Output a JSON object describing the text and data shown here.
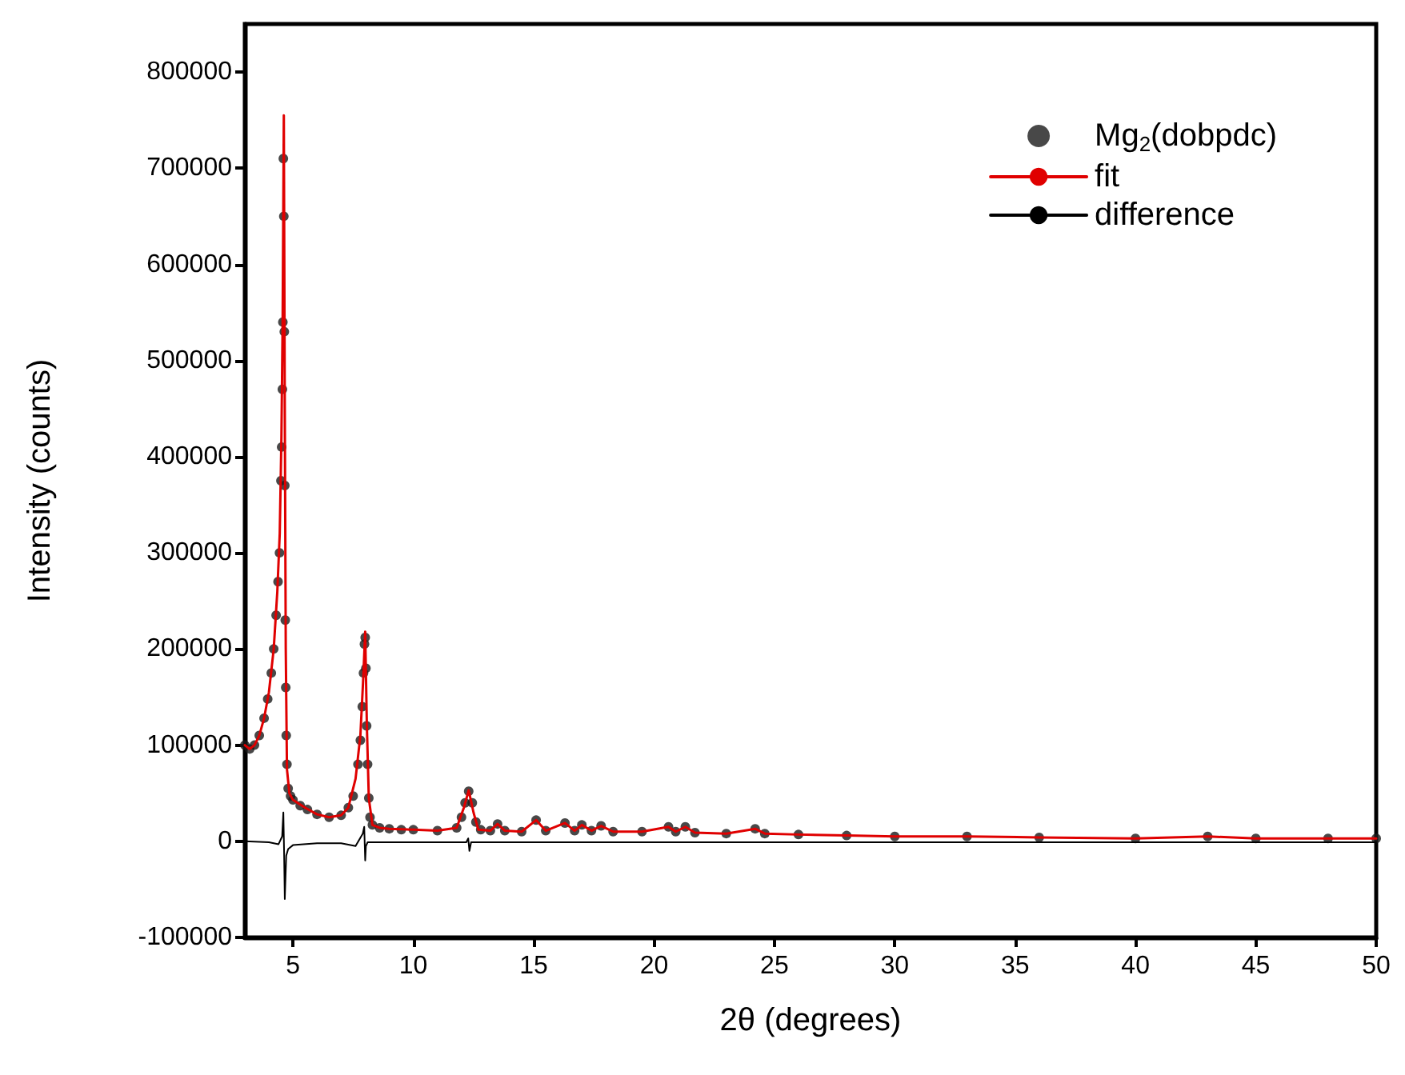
{
  "chart_data": {
    "type": "line",
    "xlabel": "2θ (degrees)",
    "ylabel": "Intensity (counts)",
    "xlim": [
      3,
      50
    ],
    "xticks": [
      5,
      10,
      15,
      20,
      25,
      30,
      35,
      40,
      45,
      50
    ],
    "ylim": [
      -100000,
      850000
    ],
    "yticks": [
      -100000,
      0,
      100000,
      200000,
      300000,
      400000,
      500000,
      600000,
      700000,
      800000
    ],
    "grid": false,
    "legend": "top right",
    "line_style": "solid",
    "series": [
      {
        "name": "Mg$_{2}$(dobpdc)",
        "type": "scatter",
        "marker": "circle",
        "color": "#1a1a1a",
        "x": [
          3.0,
          3.2,
          3.4,
          3.6,
          3.8,
          3.95,
          4.1,
          4.2,
          4.3,
          4.38,
          4.44,
          4.5,
          4.53,
          4.56,
          4.58,
          4.6,
          4.62,
          4.64,
          4.66,
          4.68,
          4.7,
          4.72,
          4.75,
          4.8,
          4.9,
          5.0,
          5.3,
          5.6,
          6.0,
          6.5,
          7.0,
          7.3,
          7.5,
          7.7,
          7.8,
          7.88,
          7.93,
          7.97,
          8.0,
          8.03,
          8.06,
          8.1,
          8.15,
          8.2,
          8.3,
          8.6,
          9.0,
          9.5,
          10.0,
          11.0,
          11.8,
          12.0,
          12.15,
          12.3,
          12.45,
          12.6,
          12.8,
          13.2,
          13.5,
          13.8,
          14.5,
          15.1,
          15.5,
          16.3,
          16.7,
          17.0,
          17.4,
          17.8,
          18.3,
          19.5,
          20.6,
          20.9,
          21.3,
          21.7,
          23.0,
          24.2,
          24.6,
          26.0,
          28.0,
          30.0,
          33.0,
          36.0,
          40.0,
          43.0,
          45.0,
          48.0,
          50.0
        ],
        "values": [
          100000,
          96000,
          100000,
          110000,
          128000,
          148000,
          175000,
          200000,
          235000,
          270000,
          300000,
          375000,
          410000,
          470000,
          540000,
          710000,
          650000,
          530000,
          370000,
          230000,
          160000,
          110000,
          80000,
          55000,
          47000,
          43000,
          37000,
          33000,
          28000,
          25000,
          27000,
          35000,
          47000,
          80000,
          105000,
          140000,
          175000,
          205000,
          212000,
          180000,
          120000,
          80000,
          45000,
          25000,
          17000,
          14000,
          13000,
          12000,
          12000,
          11000,
          14000,
          25000,
          40000,
          52000,
          40000,
          20000,
          12000,
          11000,
          18000,
          11000,
          10000,
          22000,
          11000,
          19000,
          11000,
          17000,
          11000,
          16000,
          10000,
          10000,
          15000,
          10000,
          15000,
          9000,
          8000,
          13000,
          8000,
          7000,
          6000,
          5000,
          5000,
          4000,
          3000,
          5000,
          3000,
          3000,
          3000
        ]
      },
      {
        "name": "fit",
        "type": "line",
        "color": "#e00000",
        "x": [
          3.0,
          3.2,
          3.4,
          3.6,
          3.8,
          4.0,
          4.2,
          4.35,
          4.45,
          4.52,
          4.57,
          4.62,
          4.66,
          4.7,
          4.75,
          4.85,
          5.0,
          5.5,
          6.0,
          6.5,
          7.0,
          7.3,
          7.6,
          7.8,
          7.92,
          8.0,
          8.07,
          8.15,
          8.3,
          8.6,
          9.0,
          10.0,
          11.0,
          11.8,
          12.1,
          12.3,
          12.5,
          12.7,
          13.2,
          13.5,
          13.8,
          14.5,
          15.1,
          15.5,
          16.3,
          16.7,
          17.0,
          17.4,
          17.8,
          18.3,
          19.5,
          20.6,
          20.9,
          21.3,
          21.7,
          23.0,
          24.2,
          24.6,
          26.0,
          28.0,
          30.0,
          33.0,
          36.0,
          40.0,
          43.0,
          45.0,
          48.0,
          50.0
        ],
        "values": [
          100000,
          96000,
          100000,
          110000,
          128000,
          155000,
          200000,
          260000,
          320000,
          420000,
          540000,
          755000,
          450000,
          200000,
          75000,
          50000,
          43000,
          35000,
          28000,
          25000,
          27000,
          35000,
          65000,
          110000,
          170000,
          218000,
          120000,
          45000,
          17000,
          14000,
          13000,
          12000,
          11000,
          14000,
          35000,
          53000,
          30000,
          12000,
          11000,
          18000,
          11000,
          10000,
          22000,
          11000,
          19000,
          11000,
          17000,
          11000,
          16000,
          10000,
          10000,
          15000,
          10000,
          15000,
          9000,
          8000,
          13000,
          8000,
          7000,
          6000,
          5000,
          5000,
          4000,
          3000,
          5000,
          3000,
          3000,
          3000
        ]
      },
      {
        "name": "difference",
        "type": "line",
        "color": "#000000",
        "x": [
          3.0,
          4.0,
          4.4,
          4.55,
          4.6,
          4.63,
          4.66,
          4.72,
          4.8,
          5.0,
          6.0,
          7.0,
          7.6,
          7.9,
          7.96,
          8.0,
          8.03,
          8.1,
          9.0,
          12.2,
          12.28,
          12.33,
          12.4,
          13.0,
          20.0,
          30.0,
          40.0,
          50.0
        ],
        "values": [
          0,
          -1000,
          -3000,
          5000,
          30000,
          -10000,
          -60000,
          -15000,
          -8000,
          -4000,
          -2000,
          -2000,
          -5000,
          8000,
          15000,
          -20000,
          -5000,
          -1000,
          -1000,
          -1000,
          3000,
          -10000,
          -1000,
          -1000,
          -1000,
          -1000,
          -1000,
          -1000
        ]
      }
    ]
  }
}
